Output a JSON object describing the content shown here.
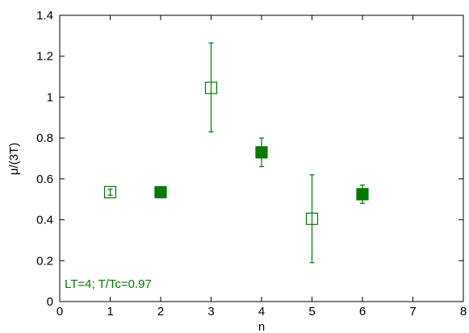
{
  "chart_data": {
    "type": "scatter",
    "title": "",
    "xlabel": "n",
    "ylabel": "μ/(3T)",
    "xlim": [
      0,
      8
    ],
    "ylim": [
      0,
      1.4
    ],
    "xticks": [
      "0",
      "1",
      "2",
      "3",
      "4",
      "5",
      "6",
      "7",
      "8"
    ],
    "yticks": [
      "0",
      "0.2",
      "0.4",
      "0.6",
      "0.8",
      "1",
      "1.2",
      "1.4"
    ],
    "grid": false,
    "annotation": "LT=4; T/Tc=0.97",
    "color": "#007a00",
    "series": [
      {
        "marker": "open-square",
        "points": [
          {
            "x": 1,
            "y": 0.535,
            "err_low": 0.015,
            "err_high": 0.015
          },
          {
            "x": 3,
            "y": 1.045,
            "err_low": 0.215,
            "err_high": 0.22
          },
          {
            "x": 5,
            "y": 0.405,
            "err_low": 0.215,
            "err_high": 0.215
          }
        ]
      },
      {
        "marker": "filled-square",
        "points": [
          {
            "x": 2,
            "y": 0.535,
            "err_low": 0.0,
            "err_high": 0.0
          },
          {
            "x": 4,
            "y": 0.73,
            "err_low": 0.07,
            "err_high": 0.07
          },
          {
            "x": 6,
            "y": 0.525,
            "err_low": 0.045,
            "err_high": 0.045
          }
        ]
      }
    ]
  }
}
